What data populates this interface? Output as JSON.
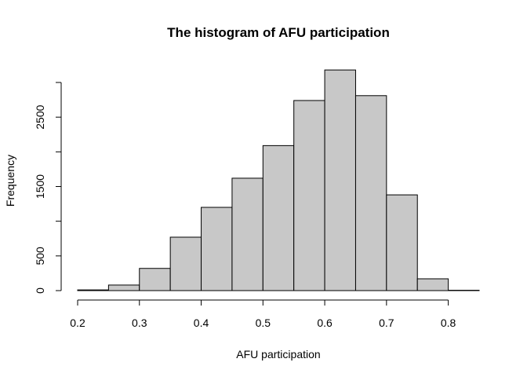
{
  "chart_data": {
    "type": "bar",
    "title": "The histogram of AFU participation",
    "xlabel": "AFU participation",
    "ylabel": "Frequency",
    "bin_edges": [
      0.2,
      0.25,
      0.3,
      0.35,
      0.4,
      0.45,
      0.5,
      0.55,
      0.6,
      0.65,
      0.7,
      0.75,
      0.8,
      0.85
    ],
    "values": [
      10,
      80,
      320,
      770,
      1200,
      1620,
      2090,
      2740,
      3180,
      2810,
      1380,
      170,
      5
    ],
    "xlim": [
      0.2,
      0.85
    ],
    "ylim": [
      0,
      3000
    ],
    "x_ticks": [
      0.2,
      0.3,
      0.4,
      0.5,
      0.6,
      0.7,
      0.8
    ],
    "x_tick_labels": [
      "0.2",
      "0.3",
      "0.4",
      "0.5",
      "0.6",
      "0.7",
      "0.8"
    ],
    "y_ticks": [
      0,
      500,
      1000,
      1500,
      2000,
      2500,
      3000
    ],
    "y_tick_labels": [
      "0",
      "500",
      "",
      "1500",
      "",
      "2500",
      ""
    ],
    "grid": false,
    "bar_color": "#c8c8c8",
    "edge_color": "#000000"
  }
}
